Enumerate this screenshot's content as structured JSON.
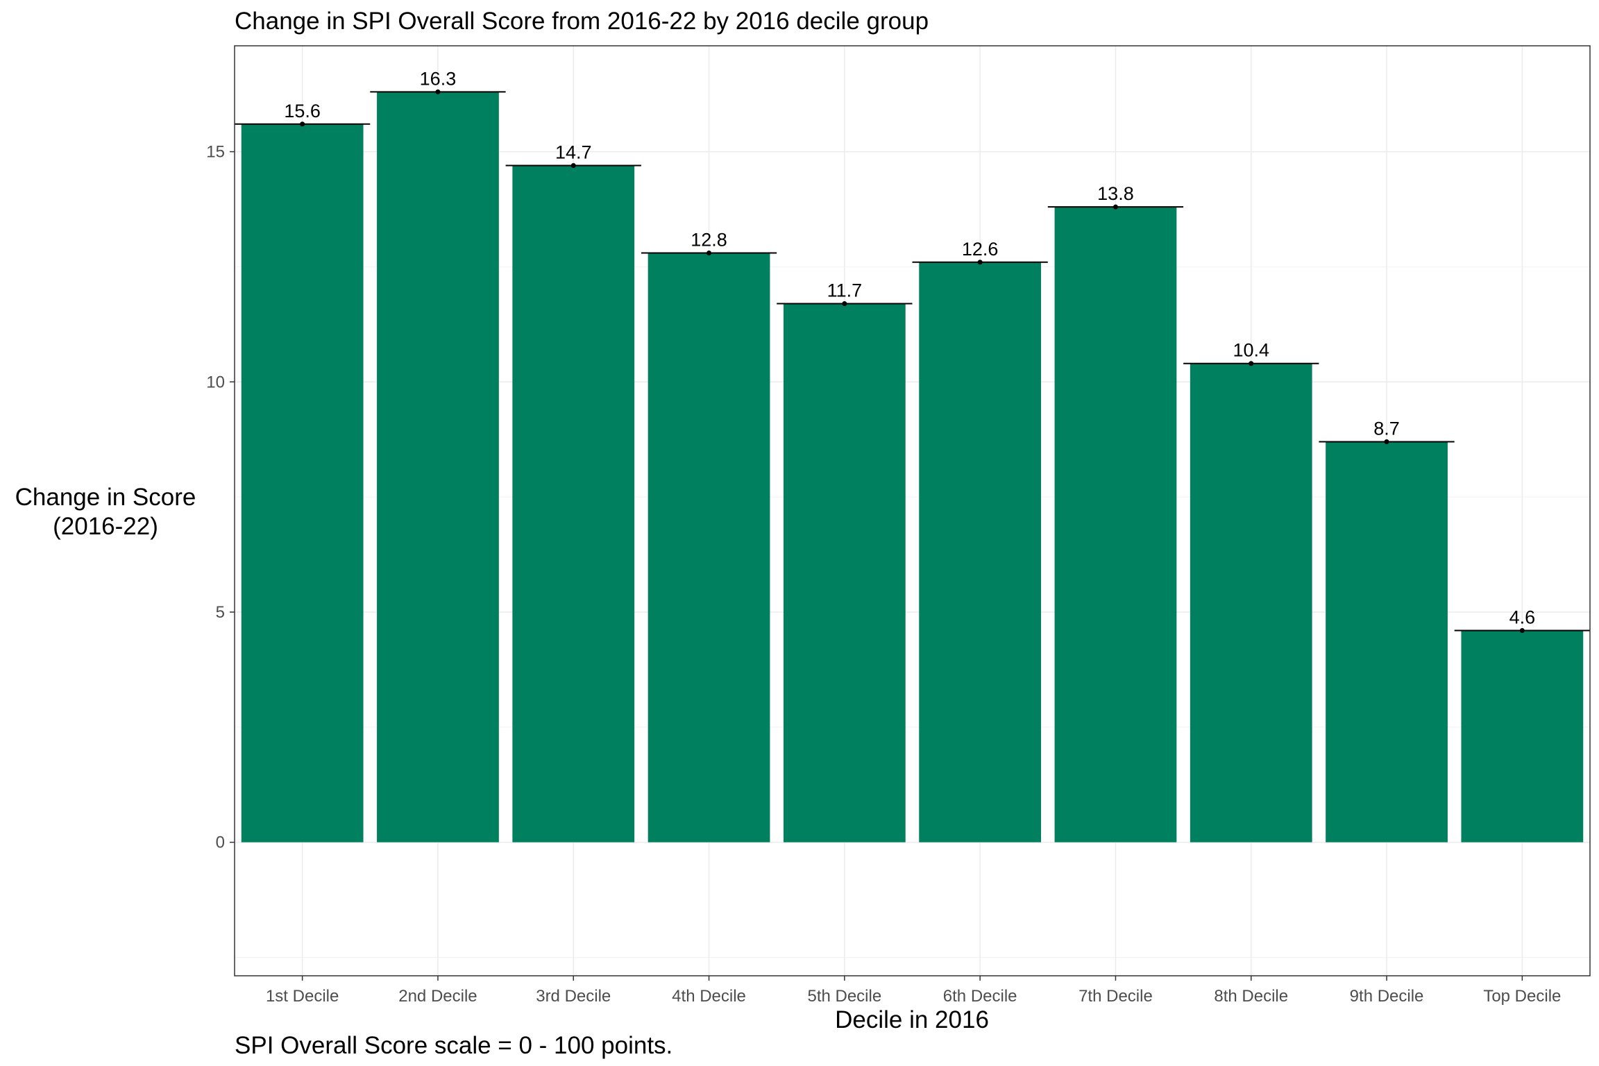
{
  "chart_data": {
    "type": "bar",
    "title": "Change in SPI Overall Score from 2016-22 by 2016 decile group",
    "xlabel": "Decile in 2016",
    "ylabel_lines": [
      "Change in Score",
      "(2016-22)"
    ],
    "caption": "SPI Overall Score scale = 0 - 100 points.",
    "categories": [
      "1st Decile",
      "2nd Decile",
      "3rd Decile",
      "4th Decile",
      "5th Decile",
      "6th Decile",
      "7th Decile",
      "8th Decile",
      "9th Decile",
      "Top Decile"
    ],
    "values": [
      15.6,
      16.3,
      14.7,
      12.8,
      11.7,
      12.6,
      13.8,
      10.4,
      8.7,
      4.6
    ],
    "value_labels": [
      "15.6",
      "16.3",
      "14.7",
      "12.8",
      "11.7",
      "12.6",
      "13.8",
      "10.4",
      "8.7",
      "4.6"
    ],
    "ylim": [
      -2.9,
      17.3
    ],
    "y_ticks": [
      0,
      5,
      10,
      15
    ],
    "grid": true,
    "bar_color": "#00805f",
    "error_bar_color": "#000000"
  }
}
